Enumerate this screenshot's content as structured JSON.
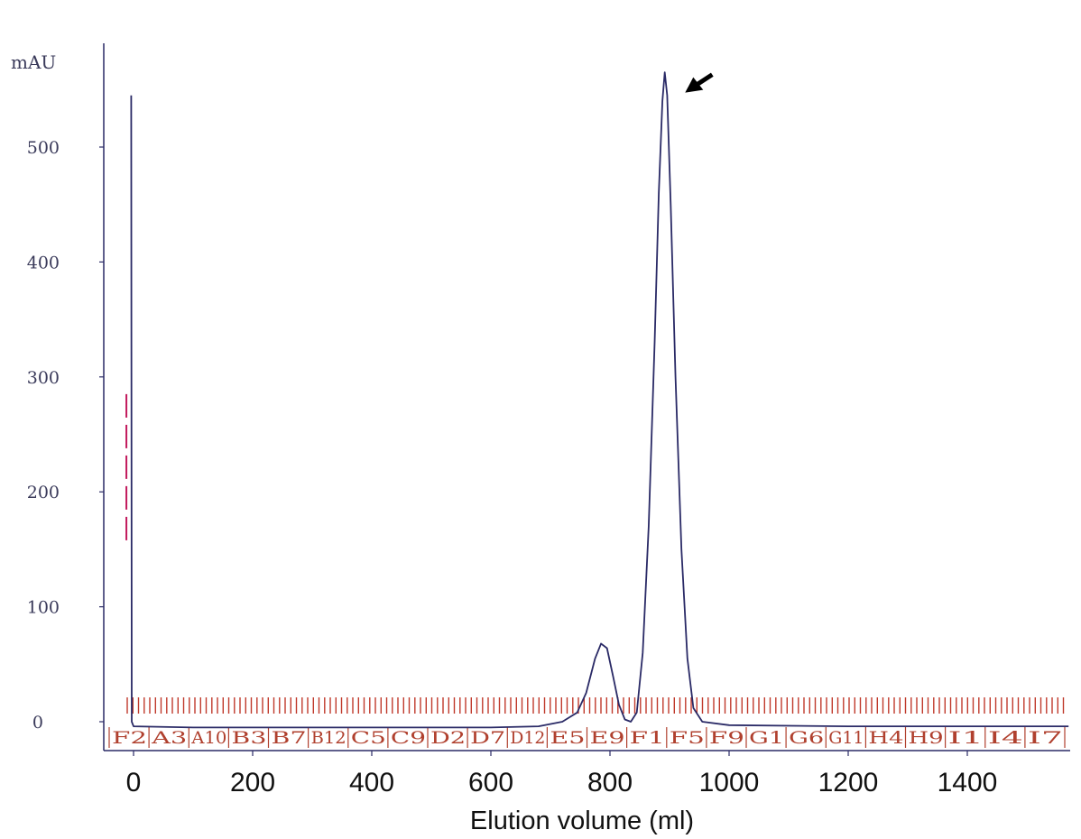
{
  "chart_data": {
    "type": "line",
    "ylabel": "mAU",
    "xlabel": "Elution volume (ml)",
    "xlim": [
      0,
      1600
    ],
    "ylim": [
      0,
      560
    ],
    "x_ticks": [
      0,
      200,
      400,
      600,
      800,
      1000,
      1200,
      1400
    ],
    "y_ticks": [
      0,
      100,
      200,
      300,
      400,
      500
    ],
    "grid": false,
    "series": [
      {
        "color": "#2a2a66",
        "points": [
          [
            -4,
            545
          ],
          [
            -3,
            0
          ],
          [
            0,
            -4
          ],
          [
            100,
            -5
          ],
          [
            200,
            -5
          ],
          [
            300,
            -5
          ],
          [
            400,
            -5
          ],
          [
            500,
            -5
          ],
          [
            600,
            -5
          ],
          [
            680,
            -4
          ],
          [
            720,
            0
          ],
          [
            745,
            8
          ],
          [
            760,
            25
          ],
          [
            775,
            55
          ],
          [
            785,
            68
          ],
          [
            795,
            64
          ],
          [
            805,
            40
          ],
          [
            815,
            15
          ],
          [
            825,
            2
          ],
          [
            835,
            0
          ],
          [
            845,
            8
          ],
          [
            855,
            60
          ],
          [
            865,
            170
          ],
          [
            875,
            330
          ],
          [
            882,
            460
          ],
          [
            888,
            540
          ],
          [
            892,
            565
          ],
          [
            896,
            545
          ],
          [
            902,
            450
          ],
          [
            910,
            300
          ],
          [
            920,
            150
          ],
          [
            930,
            55
          ],
          [
            940,
            12
          ],
          [
            955,
            0
          ],
          [
            1000,
            -3
          ],
          [
            1200,
            -4
          ],
          [
            1400,
            -4
          ],
          [
            1570,
            -4
          ]
        ]
      }
    ],
    "fraction_marker_line": {
      "color": "#c2185b",
      "style": "dashed",
      "x": -12,
      "y_range": [
        155,
        285
      ]
    },
    "fractions": [
      "F2",
      "A3",
      "A10",
      "B3",
      "B7",
      "B12",
      "C5",
      "C9",
      "D2",
      "D7",
      "D12",
      "E5",
      "E9",
      "F1",
      "F5",
      "F9",
      "G1",
      "G6",
      "G11",
      "H4",
      "H9",
      "I1",
      "I4",
      "I7"
    ],
    "annotations": [
      {
        "type": "arrow",
        "color": "#000000",
        "points_to_x": 905,
        "points_to_y": 545
      }
    ]
  }
}
